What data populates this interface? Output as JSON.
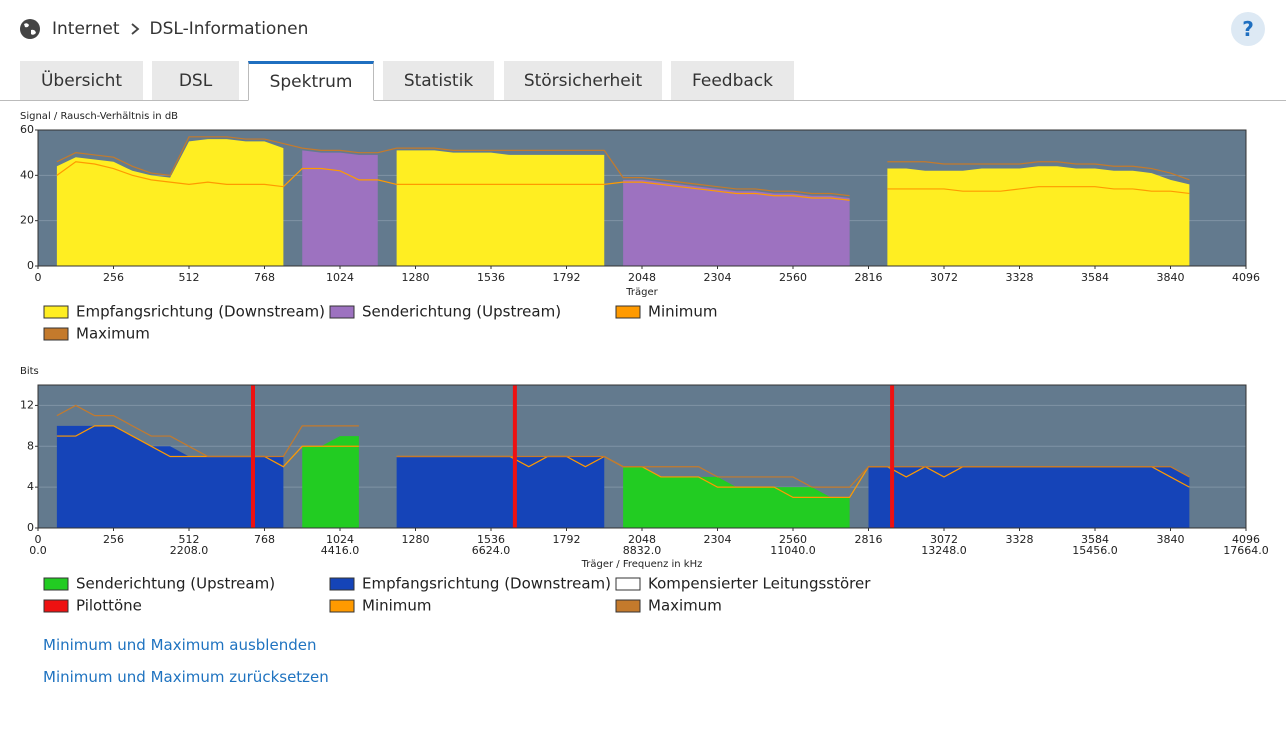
{
  "header": {
    "breadcrumb": [
      "Internet",
      "DSL-Informationen"
    ],
    "help": "?"
  },
  "tabs": [
    "Übersicht",
    "DSL",
    "Spektrum",
    "Statistik",
    "Störsicherheit",
    "Feedback"
  ],
  "active_tab": 2,
  "chart_data": [
    {
      "type": "area",
      "y_label": "Signal / Rausch-Verhältnis in dB",
      "x_label": "Träger",
      "xlim": [
        0,
        4096
      ],
      "xticks": [
        0,
        256,
        512,
        768,
        1024,
        1280,
        1536,
        1792,
        2048,
        2304,
        2560,
        2816,
        3072,
        3328,
        3584,
        3840,
        4096
      ],
      "ylim": [
        0,
        60
      ],
      "yticks": [
        0,
        20,
        40,
        60
      ],
      "grid": true,
      "x": [
        0,
        64,
        128,
        192,
        256,
        320,
        384,
        448,
        512,
        576,
        640,
        704,
        768,
        832,
        896,
        960,
        1024,
        1088,
        1152,
        1216,
        1280,
        1344,
        1408,
        1472,
        1536,
        1600,
        1664,
        1728,
        1792,
        1856,
        1920,
        1984,
        2048,
        2112,
        2176,
        2240,
        2304,
        2368,
        2432,
        2496,
        2560,
        2624,
        2688,
        2752,
        2816,
        2880,
        2944,
        3008,
        3072,
        3136,
        3200,
        3264,
        3328,
        3392,
        3456,
        3520,
        3584,
        3648,
        3712,
        3776,
        3840,
        3904,
        3968,
        4032,
        4096
      ],
      "series": [
        {
          "name": "Empfangsrichtung (Downstream)",
          "color": "#ffee22",
          "style": "area",
          "values": [
            null,
            44,
            48,
            47,
            46,
            42,
            40,
            39,
            55,
            56,
            56,
            55,
            55,
            52,
            null,
            null,
            null,
            null,
            null,
            51,
            51,
            51,
            50,
            50,
            50,
            49,
            49,
            49,
            49,
            49,
            49,
            null,
            null,
            null,
            null,
            null,
            null,
            null,
            null,
            null,
            null,
            null,
            null,
            null,
            null,
            43,
            43,
            42,
            42,
            42,
            43,
            43,
            43,
            44,
            44,
            43,
            43,
            42,
            42,
            41,
            38,
            36,
            null,
            null,
            null
          ]
        },
        {
          "name": "Senderichtung (Upstream)",
          "color": "#9d72c0",
          "style": "area",
          "values": [
            null,
            null,
            null,
            null,
            null,
            null,
            null,
            null,
            null,
            null,
            null,
            null,
            null,
            null,
            51,
            50,
            50,
            49,
            49,
            null,
            null,
            null,
            null,
            null,
            null,
            null,
            null,
            null,
            null,
            null,
            null,
            38,
            38,
            37,
            36,
            35,
            34,
            33,
            33,
            32,
            32,
            31,
            31,
            30,
            null,
            null,
            null,
            null,
            null,
            null,
            null,
            null,
            null,
            null,
            null,
            null,
            null,
            null,
            null,
            null,
            null,
            null,
            null,
            null,
            null
          ]
        },
        {
          "name": "Minimum",
          "color": "#ff9a00",
          "style": "line",
          "values": [
            null,
            40,
            46,
            45,
            43,
            40,
            38,
            37,
            36,
            37,
            36,
            36,
            36,
            35,
            43,
            43,
            42,
            38,
            38,
            36,
            36,
            36,
            36,
            36,
            36,
            36,
            36,
            36,
            36,
            36,
            36,
            37,
            37,
            36,
            35,
            34,
            33,
            32,
            32,
            31,
            31,
            30,
            30,
            29,
            null,
            34,
            34,
            34,
            34,
            33,
            33,
            33,
            34,
            35,
            35,
            35,
            35,
            34,
            34,
            33,
            33,
            32,
            null,
            null,
            null
          ]
        },
        {
          "name": "Maximum",
          "color": "#c47a2c",
          "style": "line",
          "values": [
            null,
            46,
            50,
            49,
            48,
            44,
            41,
            40,
            57,
            57,
            57,
            56,
            56,
            54,
            52,
            51,
            51,
            50,
            50,
            52,
            52,
            52,
            51,
            51,
            51,
            51,
            51,
            51,
            51,
            51,
            51,
            39,
            39,
            38,
            37,
            36,
            35,
            34,
            34,
            33,
            33,
            32,
            32,
            31,
            null,
            46,
            46,
            46,
            45,
            45,
            45,
            45,
            45,
            46,
            46,
            45,
            45,
            44,
            44,
            43,
            41,
            38,
            null,
            null,
            null
          ]
        }
      ]
    },
    {
      "type": "area",
      "y_label": "Bits",
      "x_label": "Träger / Frequenz in kHz",
      "xlim": [
        0,
        4096
      ],
      "xticks": [
        0,
        256,
        512,
        768,
        1024,
        1280,
        1536,
        1792,
        2048,
        2304,
        2560,
        2816,
        3072,
        3328,
        3584,
        3840,
        4096
      ],
      "x2lim": [
        0,
        17664
      ],
      "x2ticks": [
        {
          "value": 0,
          "label": "0.0"
        },
        {
          "value": 2208,
          "label": "2208.0"
        },
        {
          "value": 4416,
          "label": "4416.0"
        },
        {
          "value": 6624,
          "label": "6624.0"
        },
        {
          "value": 8832,
          "label": "8832.0"
        },
        {
          "value": 11040,
          "label": "11040.0"
        },
        {
          "value": 13248,
          "label": "13248.0"
        },
        {
          "value": 15456,
          "label": "15456.0"
        },
        {
          "value": 17664,
          "label": "17664.0"
        }
      ],
      "ylim": [
        0,
        14
      ],
      "yticks": [
        0,
        4,
        8,
        12
      ],
      "grid": true,
      "x": [
        0,
        64,
        128,
        192,
        256,
        320,
        384,
        448,
        512,
        576,
        640,
        704,
        768,
        832,
        896,
        960,
        1024,
        1088,
        1152,
        1216,
        1280,
        1344,
        1408,
        1472,
        1536,
        1600,
        1664,
        1728,
        1792,
        1856,
        1920,
        1984,
        2048,
        2112,
        2176,
        2240,
        2304,
        2368,
        2432,
        2496,
        2560,
        2624,
        2688,
        2752,
        2816,
        2880,
        2944,
        3008,
        3072,
        3136,
        3200,
        3264,
        3328,
        3392,
        3456,
        3520,
        3584,
        3648,
        3712,
        3776,
        3840,
        3904,
        3968,
        4032,
        4096
      ],
      "series": [
        {
          "name": "Senderichtung (Upstream)",
          "color": "#22cc22",
          "style": "area",
          "values": [
            null,
            null,
            null,
            null,
            null,
            null,
            null,
            null,
            null,
            null,
            null,
            null,
            null,
            null,
            8,
            8,
            9,
            9,
            null,
            null,
            null,
            null,
            null,
            null,
            null,
            null,
            null,
            null,
            null,
            null,
            null,
            6,
            6,
            5,
            5,
            5,
            5,
            4,
            4,
            4,
            4,
            4,
            3,
            3,
            null,
            null,
            null,
            null,
            null,
            null,
            null,
            null,
            null,
            null,
            null,
            null,
            null,
            null,
            null,
            null,
            null,
            null,
            null,
            null,
            null
          ]
        },
        {
          "name": "Empfangsrichtung (Downstream)",
          "color": "#1544b8",
          "style": "area",
          "values": [
            null,
            10,
            10,
            10,
            10,
            9,
            8,
            8,
            7,
            7,
            7,
            7,
            7,
            7,
            null,
            null,
            null,
            null,
            null,
            7,
            7,
            7,
            7,
            7,
            7,
            7,
            7,
            7,
            7,
            7,
            7,
            null,
            null,
            null,
            null,
            null,
            null,
            null,
            null,
            null,
            null,
            null,
            null,
            null,
            6,
            6,
            6,
            6,
            6,
            6,
            6,
            6,
            6,
            6,
            6,
            6,
            6,
            6,
            6,
            6,
            6,
            5,
            null,
            null,
            null
          ]
        },
        {
          "name": "Kompensierter Leitungsstörer",
          "color": "#ffffff",
          "style": "area"
        },
        {
          "name": "Pilottöne",
          "color": "#ee1111",
          "style": "pilot",
          "x": [
            729,
            1617,
            2896
          ]
        },
        {
          "name": "Minimum",
          "color": "#ff9a00",
          "style": "line",
          "values": [
            null,
            9,
            9,
            10,
            10,
            9,
            8,
            7,
            7,
            7,
            7,
            7,
            7,
            6,
            8,
            8,
            8,
            8,
            null,
            7,
            7,
            7,
            7,
            7,
            7,
            7,
            6,
            7,
            7,
            6,
            7,
            6,
            6,
            5,
            5,
            5,
            4,
            4,
            4,
            4,
            3,
            3,
            3,
            3,
            6,
            6,
            5,
            6,
            5,
            6,
            6,
            6,
            6,
            6,
            6,
            6,
            6,
            6,
            6,
            6,
            5,
            4,
            null,
            null,
            null
          ]
        },
        {
          "name": "Maximum",
          "color": "#c47a2c",
          "style": "line",
          "values": [
            null,
            11,
            12,
            11,
            11,
            10,
            9,
            9,
            8,
            7,
            7,
            7,
            7,
            7,
            10,
            10,
            10,
            10,
            null,
            7,
            7,
            7,
            7,
            7,
            7,
            7,
            7,
            7,
            7,
            7,
            7,
            6,
            6,
            6,
            6,
            6,
            5,
            5,
            5,
            5,
            5,
            4,
            4,
            4,
            6,
            6,
            6,
            6,
            6,
            6,
            6,
            6,
            6,
            6,
            6,
            6,
            6,
            6,
            6,
            6,
            6,
            5,
            null,
            null,
            null
          ]
        }
      ]
    }
  ],
  "links": [
    "Minimum und Maximum ausblenden",
    "Minimum und Maximum zurücksetzen"
  ]
}
